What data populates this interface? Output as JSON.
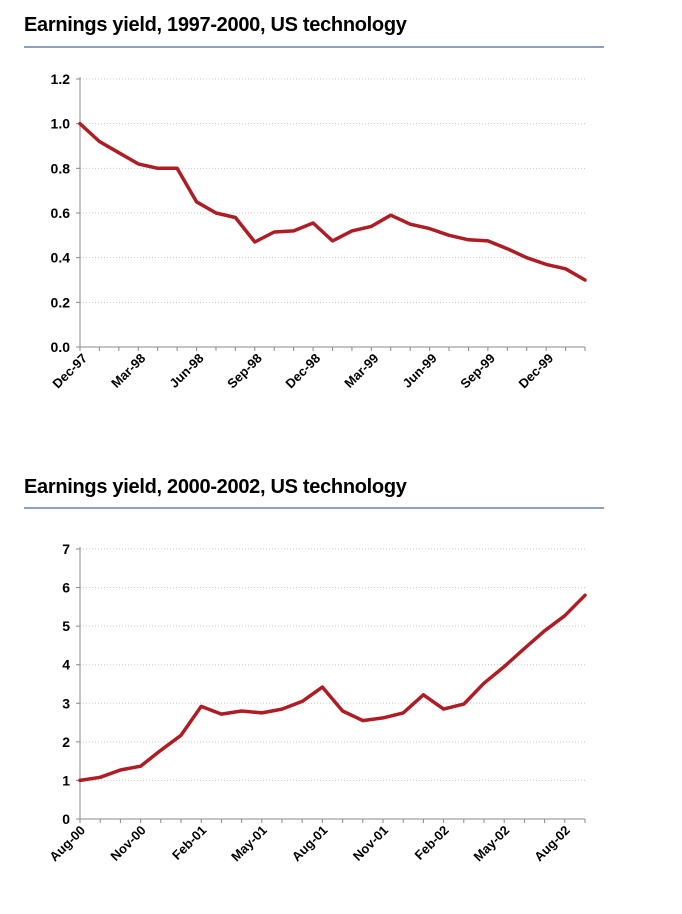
{
  "chart_data": [
    {
      "type": "line",
      "title": "Earnings yield, 1997-2000, US technology",
      "xlabel": "",
      "ylabel": "",
      "ylim": [
        0,
        1.2
      ],
      "yticks": [
        "0.0",
        "0.2",
        "0.4",
        "0.6",
        "0.8",
        "1.0",
        "1.2"
      ],
      "ytick_values": [
        0,
        0.2,
        0.4,
        0.6,
        0.8,
        1.0,
        1.2
      ],
      "xtick_labels": [
        "Dec-97",
        "Mar-98",
        "Jun-98",
        "Sep-98",
        "Dec-98",
        "Mar-99",
        "Jun-99",
        "Sep-99",
        "Dec-99"
      ],
      "grid": true,
      "color": "#b01c24",
      "series": [
        {
          "name": "Earnings yield",
          "values": [
            1.0,
            0.92,
            0.87,
            0.82,
            0.8,
            0.8,
            0.65,
            0.6,
            0.58,
            0.47,
            0.515,
            0.52,
            0.555,
            0.475,
            0.52,
            0.54,
            0.59,
            0.55,
            0.53,
            0.5,
            0.48,
            0.475,
            0.44,
            0.4,
            0.37,
            0.35,
            0.3
          ]
        }
      ]
    },
    {
      "type": "line",
      "title": "Earnings yield, 2000-2002, US technology",
      "xlabel": "",
      "ylabel": "",
      "ylim": [
        0,
        7
      ],
      "yticks": [
        "0",
        "1",
        "2",
        "3",
        "4",
        "5",
        "6",
        "7"
      ],
      "ytick_values": [
        0,
        1,
        2,
        3,
        4,
        5,
        6,
        7
      ],
      "xtick_labels": [
        "Aug-00",
        "Nov-00",
        "Feb-01",
        "May-01",
        "Aug-01",
        "Nov-01",
        "Feb-02",
        "May-02",
        "Aug-02"
      ],
      "grid": true,
      "color": "#b01c24",
      "series": [
        {
          "name": "Earnings yield",
          "values": [
            1.0,
            1.08,
            1.27,
            1.37,
            1.78,
            2.17,
            2.92,
            2.72,
            2.8,
            2.75,
            2.85,
            3.05,
            3.42,
            2.8,
            2.55,
            2.62,
            2.75,
            3.22,
            2.85,
            2.98,
            3.52,
            3.95,
            4.42,
            4.88,
            5.27,
            5.8
          ]
        }
      ]
    }
  ]
}
